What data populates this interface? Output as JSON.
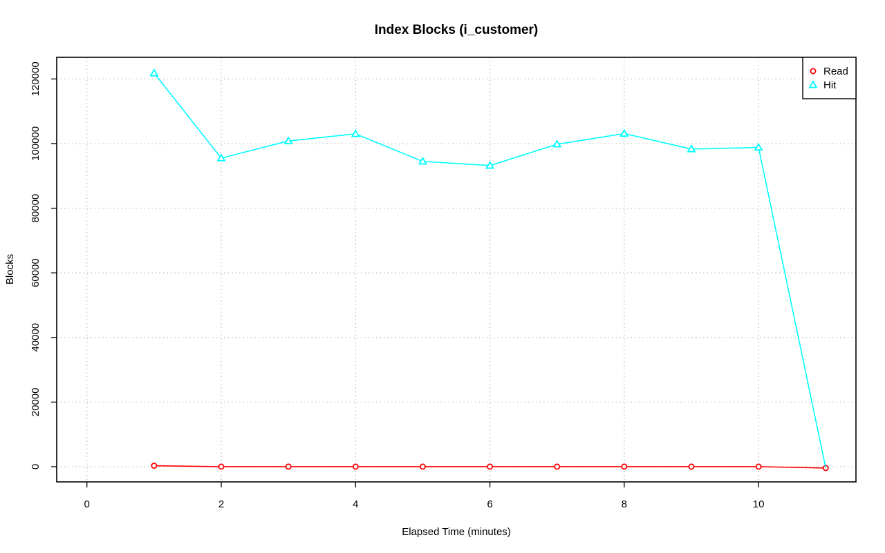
{
  "chart_data": {
    "type": "line",
    "title": "Index Blocks (i_customer)",
    "xlabel": "Elapsed Time (minutes)",
    "ylabel": "Blocks",
    "xlim": [
      -0.45,
      11.45
    ],
    "ylim": [
      -4700,
      126700
    ],
    "x_ticks": [
      0,
      2,
      4,
      6,
      8,
      10
    ],
    "y_ticks": [
      0,
      20000,
      40000,
      60000,
      80000,
      100000,
      120000
    ],
    "grid": true,
    "legend_position": "top-right",
    "series": [
      {
        "name": "Read",
        "color": "#ff0000",
        "marker": "circle",
        "x": [
          1,
          2,
          3,
          4,
          5,
          6,
          7,
          8,
          9,
          10,
          11
        ],
        "y": [
          300,
          20,
          20,
          20,
          20,
          20,
          20,
          20,
          20,
          20,
          -400
        ]
      },
      {
        "name": "Hit",
        "color": "#00ffff",
        "marker": "triangle",
        "x": [
          1,
          2,
          3,
          4,
          5,
          6,
          7,
          8,
          9,
          10,
          11
        ],
        "y": [
          121800,
          95500,
          100800,
          103000,
          94500,
          93200,
          99800,
          103100,
          98300,
          98800,
          -400
        ]
      }
    ]
  }
}
